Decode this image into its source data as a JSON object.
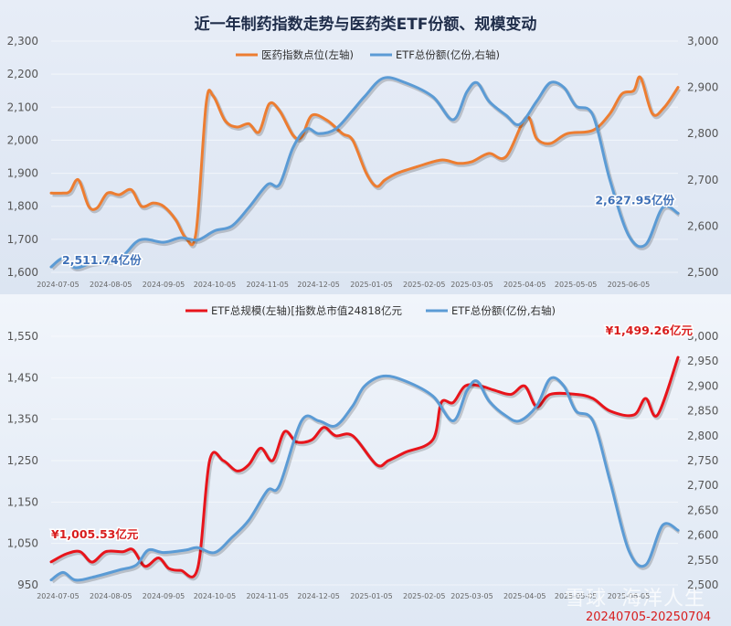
{
  "chart_data": [
    {
      "type": "line",
      "title": "近一年制药指数走势与医药类ETF份额、规模变动",
      "x_ticks": [
        "2024-07-05",
        "2024-08-05",
        "2024-09-05",
        "2024-10-05",
        "2024-11-05",
        "2024-12-05",
        "2025-01-05",
        "2025-02-05",
        "2025-03-05",
        "2025-04-05",
        "2025-05-05",
        "2025-06-05"
      ],
      "ylim_left": [
        1600,
        2300
      ],
      "yticks_left": [
        "1,600",
        "1,700",
        "1,800",
        "1,900",
        "2,000",
        "2,100",
        "2,200",
        "2,300"
      ],
      "ylim_right": [
        2500,
        3000
      ],
      "yticks_right": [
        "2,500",
        "2,600",
        "2,700",
        "2,800",
        "2,900",
        "3,000"
      ],
      "legend_position": "top-center",
      "series": [
        {
          "name": "医药指数点位(左轴)",
          "color": "#ed7d31",
          "axis": "left",
          "points": [
            [
              "2024-07-01",
              1840
            ],
            [
              "2024-07-08",
              1840
            ],
            [
              "2024-07-12",
              1845
            ],
            [
              "2024-07-17",
              1880
            ],
            [
              "2024-07-23",
              1800
            ],
            [
              "2024-07-28",
              1795
            ],
            [
              "2024-08-03",
              1840
            ],
            [
              "2024-08-10",
              1835
            ],
            [
              "2024-08-17",
              1850
            ],
            [
              "2024-08-23",
              1800
            ],
            [
              "2024-08-30",
              1810
            ],
            [
              "2024-09-05",
              1800
            ],
            [
              "2024-09-12",
              1760
            ],
            [
              "2024-09-18",
              1705
            ],
            [
              "2024-09-24",
              1720
            ],
            [
              "2024-09-30",
              2110
            ],
            [
              "2024-10-04",
              2135
            ],
            [
              "2024-10-11",
              2060
            ],
            [
              "2024-10-18",
              2040
            ],
            [
              "2024-10-25",
              2050
            ],
            [
              "2024-10-31",
              2025
            ],
            [
              "2024-11-06",
              2110
            ],
            [
              "2024-11-12",
              2090
            ],
            [
              "2024-11-20",
              2015
            ],
            [
              "2024-11-25",
              2010
            ],
            [
              "2024-12-01",
              2075
            ],
            [
              "2024-12-10",
              2060
            ],
            [
              "2024-12-19",
              2020
            ],
            [
              "2024-12-25",
              2000
            ],
            [
              "2025-01-02",
              1900
            ],
            [
              "2025-01-08",
              1860
            ],
            [
              "2025-01-13",
              1880
            ],
            [
              "2025-01-20",
              1900
            ],
            [
              "2025-02-01",
              1920
            ],
            [
              "2025-02-15",
              1940
            ],
            [
              "2025-02-25",
              1930
            ],
            [
              "2025-03-05",
              1935
            ],
            [
              "2025-03-15",
              1960
            ],
            [
              "2025-03-25",
              1950
            ],
            [
              "2025-04-06",
              2070
            ],
            [
              "2025-04-12",
              2005
            ],
            [
              "2025-04-20",
              1990
            ],
            [
              "2025-04-30",
              2020
            ],
            [
              "2025-05-15",
              2030
            ],
            [
              "2025-05-25",
              2080
            ],
            [
              "2025-06-01",
              2140
            ],
            [
              "2025-06-08",
              2150
            ],
            [
              "2025-06-12",
              2190
            ],
            [
              "2025-06-19",
              2080
            ],
            [
              "2025-06-26",
              2100
            ],
            [
              "2025-07-04",
              2160
            ]
          ]
        },
        {
          "name": "ETF总份额(亿份,右轴)",
          "color": "#5b9bd5",
          "axis": "right",
          "points": [
            [
              "2024-07-01",
              2511.74
            ],
            [
              "2024-07-08",
              2530
            ],
            [
              "2024-07-15",
              2510
            ],
            [
              "2024-07-25",
              2520
            ],
            [
              "2024-08-10",
              2530
            ],
            [
              "2024-08-22",
              2570
            ],
            [
              "2024-09-05",
              2565
            ],
            [
              "2024-09-15",
              2575
            ],
            [
              "2024-09-25",
              2570
            ],
            [
              "2024-10-05",
              2590
            ],
            [
              "2024-10-15",
              2600
            ],
            [
              "2024-10-25",
              2640
            ],
            [
              "2024-11-05",
              2690
            ],
            [
              "2024-11-12",
              2690
            ],
            [
              "2024-11-20",
              2770
            ],
            [
              "2024-11-28",
              2810
            ],
            [
              "2024-12-05",
              2800
            ],
            [
              "2024-12-15",
              2810
            ],
            [
              "2024-12-25",
              2850
            ],
            [
              "2025-01-01",
              2880
            ],
            [
              "2025-01-12",
              2920
            ],
            [
              "2025-01-25",
              2910
            ],
            [
              "2025-02-10",
              2880
            ],
            [
              "2025-02-22",
              2830
            ],
            [
              "2025-03-02",
              2890
            ],
            [
              "2025-03-08",
              2910
            ],
            [
              "2025-03-15",
              2870
            ],
            [
              "2025-03-25",
              2840
            ],
            [
              "2025-04-02",
              2820
            ],
            [
              "2025-04-12",
              2870
            ],
            [
              "2025-04-20",
              2910
            ],
            [
              "2025-04-28",
              2900
            ],
            [
              "2025-05-05",
              2860
            ],
            [
              "2025-05-15",
              2840
            ],
            [
              "2025-05-25",
              2700
            ],
            [
              "2025-06-05",
              2580
            ],
            [
              "2025-06-15",
              2560
            ],
            [
              "2025-06-25",
              2640
            ],
            [
              "2025-07-04",
              2627.95
            ]
          ]
        }
      ],
      "annotations": [
        {
          "text": "2,511.74亿份",
          "x": "2024-07-01",
          "y": 2511.74,
          "axis": "right"
        },
        {
          "text": "2,627.95亿份",
          "x": "2025-07-04",
          "y": 2627.95,
          "axis": "right"
        }
      ]
    },
    {
      "type": "line",
      "title": "",
      "x_ticks": [
        "2024-07-05",
        "2024-08-05",
        "2024-09-05",
        "2024-10-05",
        "2024-11-05",
        "2024-12-05",
        "2025-01-05",
        "2025-02-05",
        "2025-03-05",
        "2025-04-05",
        "2025-05-05",
        "2025-06-05"
      ],
      "ylim_left": [
        950,
        1550
      ],
      "yticks_left": [
        "950",
        "1,050",
        "1,150",
        "1,250",
        "1,350",
        "1,450",
        "1,550"
      ],
      "ylim_right": [
        2500,
        3000
      ],
      "yticks_right": [
        "2,500",
        "2,550",
        "2,600",
        "2,650",
        "2,700",
        "2,750",
        "2,800",
        "2,850",
        "2,900",
        "2,950",
        "3,000"
      ],
      "legend_position": "top-center",
      "series": [
        {
          "name": "ETF总规模(左轴)[指数总市值24818亿元",
          "color": "#e8141b",
          "axis": "left",
          "points": [
            [
              "2024-07-01",
              1005.53
            ],
            [
              "2024-07-10",
              1025
            ],
            [
              "2024-07-18",
              1030
            ],
            [
              "2024-07-25",
              1005
            ],
            [
              "2024-08-02",
              1030
            ],
            [
              "2024-08-12",
              1030
            ],
            [
              "2024-08-18",
              1035
            ],
            [
              "2024-08-25",
              995
            ],
            [
              "2024-09-02",
              1015
            ],
            [
              "2024-09-08",
              990
            ],
            [
              "2024-09-15",
              985
            ],
            [
              "2024-09-25",
              990
            ],
            [
              "2024-10-02",
              1250
            ],
            [
              "2024-10-10",
              1250
            ],
            [
              "2024-10-18",
              1225
            ],
            [
              "2024-10-25",
              1240
            ],
            [
              "2024-11-01",
              1280
            ],
            [
              "2024-11-08",
              1250
            ],
            [
              "2024-11-15",
              1320
            ],
            [
              "2024-11-22",
              1295
            ],
            [
              "2024-12-01",
              1300
            ],
            [
              "2024-12-08",
              1330
            ],
            [
              "2024-12-15",
              1310
            ],
            [
              "2024-12-25",
              1310
            ],
            [
              "2025-01-08",
              1240
            ],
            [
              "2025-01-15",
              1250
            ],
            [
              "2025-01-25",
              1270
            ],
            [
              "2025-02-10",
              1300
            ],
            [
              "2025-02-15",
              1390
            ],
            [
              "2025-02-22",
              1390
            ],
            [
              "2025-03-01",
              1430
            ],
            [
              "2025-03-10",
              1430
            ],
            [
              "2025-03-18",
              1420
            ],
            [
              "2025-03-28",
              1410
            ],
            [
              "2025-04-05",
              1430
            ],
            [
              "2025-04-12",
              1380
            ],
            [
              "2025-04-20",
              1410
            ],
            [
              "2025-05-05",
              1410
            ],
            [
              "2025-05-15",
              1400
            ],
            [
              "2025-05-25",
              1370
            ],
            [
              "2025-06-08",
              1360
            ],
            [
              "2025-06-15",
              1400
            ],
            [
              "2025-06-22",
              1360
            ],
            [
              "2025-07-04",
              1499.26
            ]
          ]
        },
        {
          "name": "ETF总份额(亿份,右轴)",
          "color": "#5b9bd5",
          "axis": "right",
          "points": [
            [
              "2024-07-01",
              2510
            ],
            [
              "2024-07-08",
              2525
            ],
            [
              "2024-07-15",
              2510
            ],
            [
              "2024-07-25",
              2515
            ],
            [
              "2024-08-10",
              2530
            ],
            [
              "2024-08-20",
              2540
            ],
            [
              "2024-08-27",
              2570
            ],
            [
              "2024-09-05",
              2565
            ],
            [
              "2024-09-18",
              2570
            ],
            [
              "2024-09-25",
              2575
            ],
            [
              "2024-10-05",
              2565
            ],
            [
              "2024-10-15",
              2595
            ],
            [
              "2024-10-25",
              2630
            ],
            [
              "2024-11-05",
              2690
            ],
            [
              "2024-11-12",
              2700
            ],
            [
              "2024-11-25",
              2830
            ],
            [
              "2024-12-05",
              2830
            ],
            [
              "2024-12-15",
              2820
            ],
            [
              "2024-12-25",
              2860
            ],
            [
              "2025-01-01",
              2900
            ],
            [
              "2025-01-12",
              2920
            ],
            [
              "2025-01-25",
              2910
            ],
            [
              "2025-02-10",
              2880
            ],
            [
              "2025-02-22",
              2830
            ],
            [
              "2025-03-02",
              2890
            ],
            [
              "2025-03-08",
              2910
            ],
            [
              "2025-03-15",
              2870
            ],
            [
              "2025-03-25",
              2840
            ],
            [
              "2025-04-02",
              2830
            ],
            [
              "2025-04-12",
              2860
            ],
            [
              "2025-04-20",
              2915
            ],
            [
              "2025-04-28",
              2900
            ],
            [
              "2025-05-05",
              2850
            ],
            [
              "2025-05-15",
              2830
            ],
            [
              "2025-05-25",
              2710
            ],
            [
              "2025-06-05",
              2570
            ],
            [
              "2025-06-15",
              2540
            ],
            [
              "2025-06-25",
              2620
            ],
            [
              "2025-07-04",
              2610
            ]
          ]
        }
      ],
      "annotations": [
        {
          "text": "¥1,005.53亿元",
          "x": "2024-07-01",
          "y": 1005.53,
          "axis": "left"
        },
        {
          "text": "¥1,499.26亿元",
          "x": "2025-07-04",
          "y": 1499.26,
          "axis": "left"
        }
      ]
    }
  ],
  "watermark": "雪球 ·海洋人生",
  "date_range": "20240705-20250704"
}
